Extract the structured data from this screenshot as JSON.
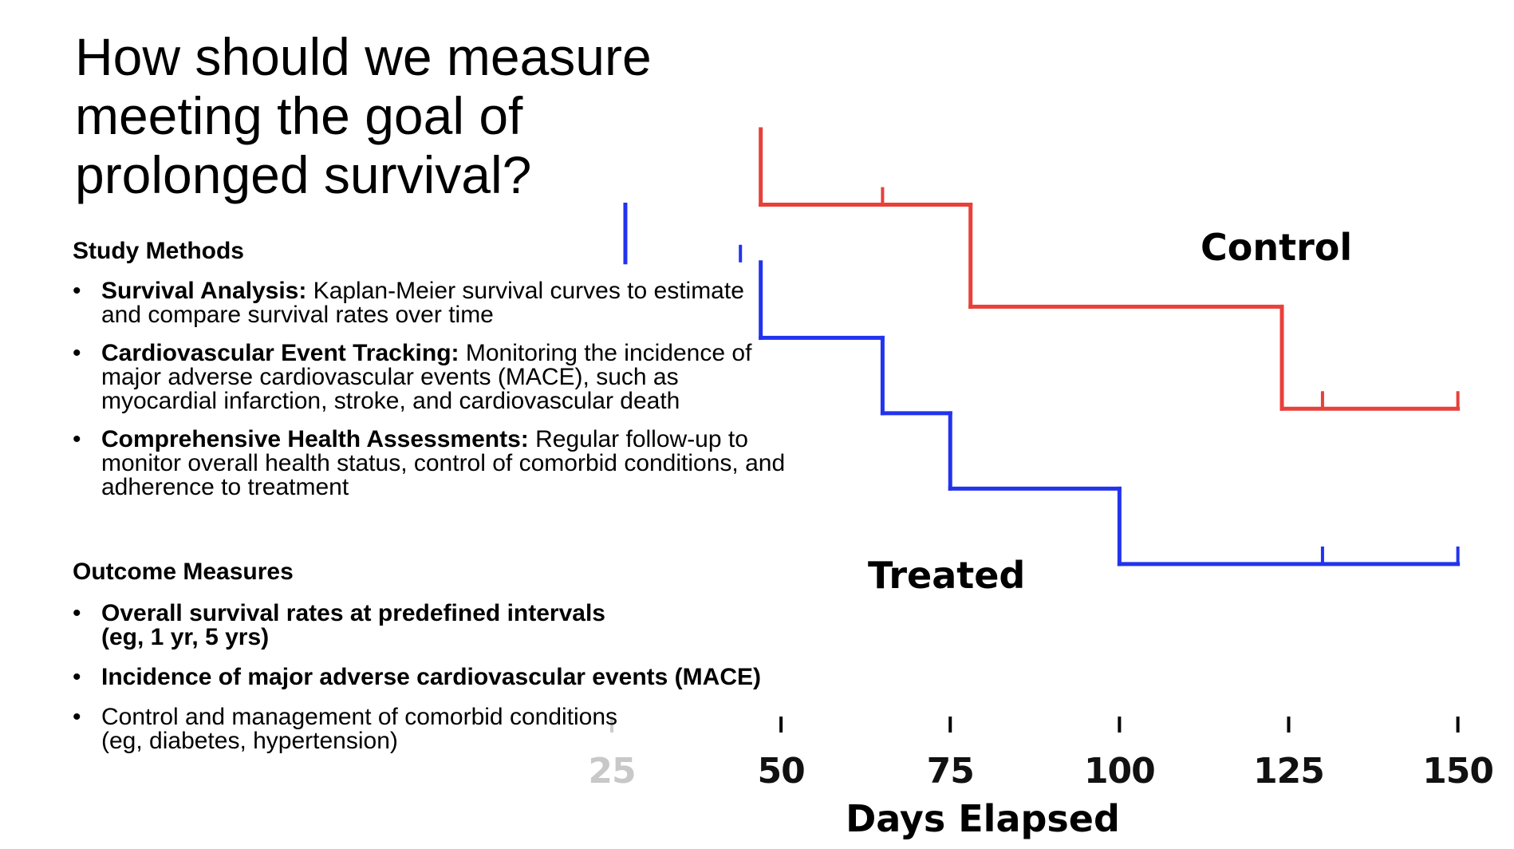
{
  "slide": {
    "title": "How should we measure meeting the goal of prolonged survival?"
  },
  "study_methods": {
    "heading": "Study Methods",
    "items": [
      {
        "bold": "Survival Analysis:",
        "text": " Kaplan-Meier survival curves to estimate and compare survival rates over time"
      },
      {
        "bold": "Cardiovascular Event Tracking:",
        "text": " Monitoring the incidence of major adverse cardiovascular events (MACE), such as myocardial infarction, stroke, and cardiovascular death"
      },
      {
        "bold": "Comprehensive Health Assessments:",
        "text": " Regular follow-up to monitor overall health status, control of comorbid conditions, and adherence to treatment"
      }
    ]
  },
  "outcome_measures": {
    "heading": "Outcome Measures",
    "items": [
      {
        "bold": "Overall survival rates at predefined intervals (eg, 1 yr, 5 yrs)",
        "text": ""
      },
      {
        "bold": "Incidence of major adverse cardiovascular events (MACE)",
        "text": ""
      },
      {
        "bold": "",
        "text": "Control and management of comorbid conditions (eg, diabetes, hypertension)"
      }
    ]
  },
  "chart_data": {
    "type": "line",
    "step": true,
    "xlabel": "Days Elapsed",
    "ylabel": "",
    "xlim": [
      0,
      150
    ],
    "ylim": [
      0,
      100
    ],
    "xticks": [
      25,
      50,
      75,
      100,
      125,
      150
    ],
    "colors": {
      "Control": "#e8403a",
      "Treated": "#2233ee"
    },
    "series": [
      {
        "name": "Control",
        "steps": [
          [
            0,
            100
          ],
          [
            47,
            100
          ],
          [
            47,
            83
          ],
          [
            78,
            83
          ],
          [
            78,
            60
          ],
          [
            124,
            60
          ],
          [
            124,
            37
          ],
          [
            150,
            37
          ]
        ],
        "censored": [
          [
            65,
            83
          ],
          [
            130,
            37
          ],
          [
            150,
            37
          ]
        ]
      },
      {
        "name": "Treated",
        "steps": [
          [
            0,
            83
          ],
          [
            27,
            83
          ],
          [
            27,
            70
          ],
          [
            47,
            70
          ],
          [
            47,
            53
          ],
          [
            65,
            53
          ],
          [
            65,
            36
          ],
          [
            75,
            36
          ],
          [
            75,
            19
          ],
          [
            100,
            19
          ],
          [
            100,
            2
          ],
          [
            150,
            2
          ]
        ],
        "censored": [
          [
            44,
            70
          ],
          [
            130,
            2
          ],
          [
            150,
            2
          ]
        ]
      }
    ]
  }
}
